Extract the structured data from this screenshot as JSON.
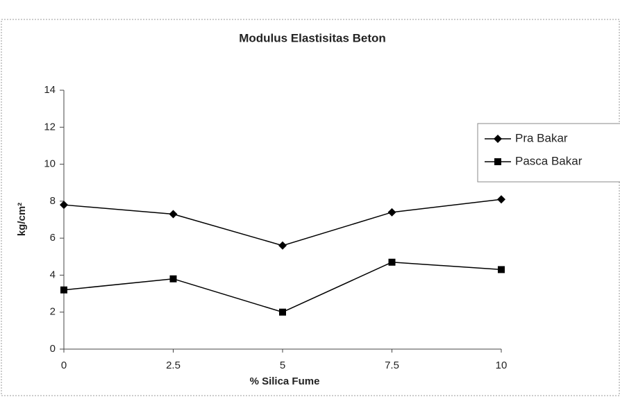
{
  "chart_data": {
    "type": "line",
    "title": "Modulus Elastisitas Beton",
    "x_label": "% Silica Fume",
    "y_label": "kg/cm²",
    "x": [
      0,
      2.5,
      5,
      7.5,
      10
    ],
    "xlim": [
      0,
      10
    ],
    "xticks": [
      0,
      2.5,
      5,
      7.5,
      10
    ],
    "ylim": [
      0,
      14
    ],
    "yticks": [
      0,
      2,
      4,
      6,
      8,
      10,
      12,
      14
    ],
    "legend": "right",
    "series": [
      {
        "name": "Pra Bakar",
        "color": "#000000",
        "marker": "diamond",
        "values": [
          7.8,
          7.3,
          5.6,
          7.4,
          8.1
        ]
      },
      {
        "name": "Pasca Bakar",
        "color": "#000000",
        "marker": "square",
        "values": [
          3.2,
          3.8,
          2.0,
          4.7,
          4.3
        ]
      }
    ]
  }
}
